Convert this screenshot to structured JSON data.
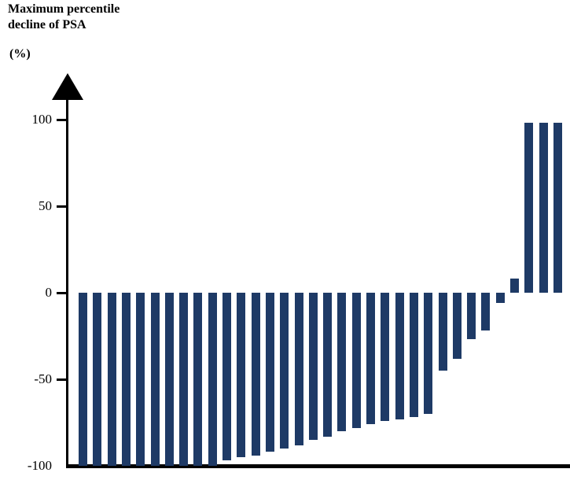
{
  "header": {
    "title_line1": "Maximum percentile",
    "title_line2": "decline of PSA",
    "unit": "(%)"
  },
  "chart_data": {
    "type": "bar",
    "subtype": "waterfall",
    "title": "Maximum percentile decline of PSA (%)",
    "ylabel_lines": [
      "Maximum percentile",
      "decline of PSA",
      "(%)"
    ],
    "xlabel": "",
    "ylabel": "Maximum percentile decline of PSA (%)",
    "values": [
      -100,
      -100,
      -100,
      -100,
      -100,
      -100,
      -100,
      -100,
      -100,
      -100,
      -97,
      -95,
      -94,
      -92,
      -90,
      -88,
      -85,
      -83,
      -80,
      -78,
      -76,
      -74,
      -73,
      -72,
      -70,
      -45,
      -38,
      -27,
      -22,
      -6,
      8,
      98,
      98,
      98
    ],
    "ylim": [
      -100,
      120
    ],
    "yticks": [
      100,
      50,
      0,
      -50,
      -100
    ],
    "ytick_labels": [
      "100",
      "50",
      "0",
      "-50",
      "-100"
    ],
    "grid": false,
    "legend_position": "none",
    "colors": {
      "bar": "#1e3a66",
      "axis": "#000000",
      "background": "#ffffff"
    }
  }
}
